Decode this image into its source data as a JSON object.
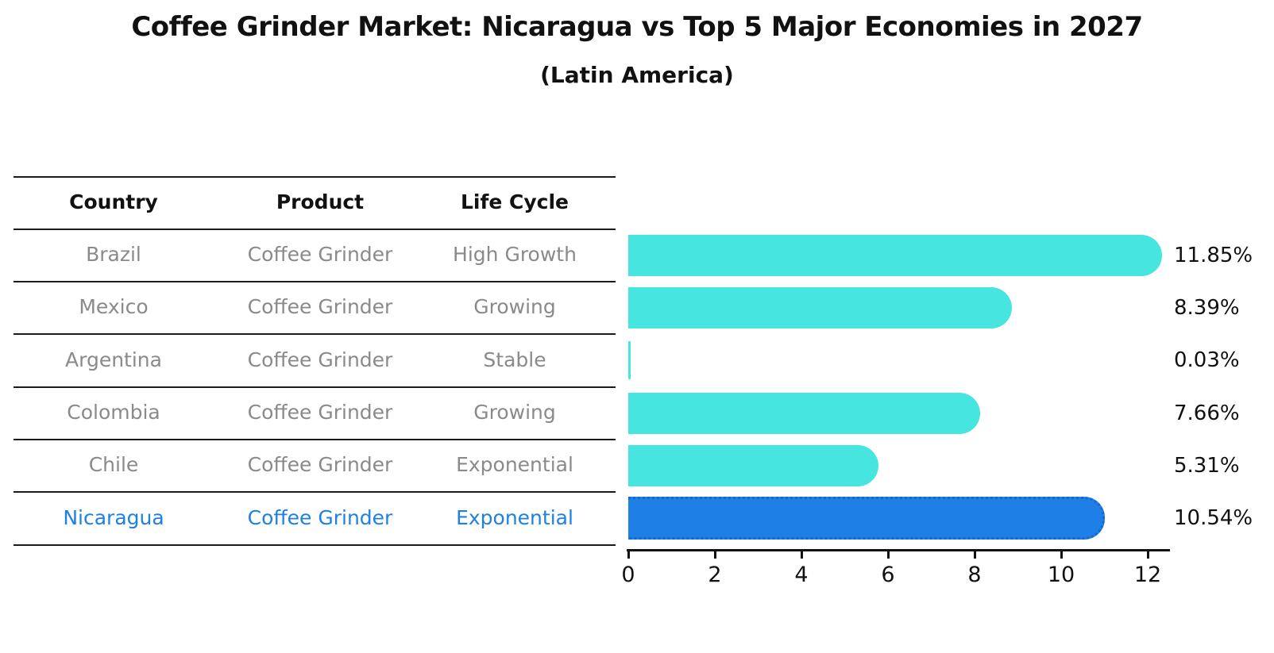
{
  "title": "Coffee Grinder Market: Nicaragua vs Top 5 Major Economies in 2027",
  "subtitle": "(Latin America)",
  "table": {
    "headers": [
      "Country",
      "Product",
      "Life Cycle"
    ],
    "rows": [
      {
        "country": "Brazil",
        "product": "Coffee Grinder",
        "life_cycle": "High Growth"
      },
      {
        "country": "Mexico",
        "product": "Coffee Grinder",
        "life_cycle": "Growing"
      },
      {
        "country": "Argentina",
        "product": "Coffee Grinder",
        "life_cycle": "Stable"
      },
      {
        "country": "Colombia",
        "product": "Coffee Grinder",
        "life_cycle": "Growing"
      },
      {
        "country": "Chile",
        "product": "Coffee Grinder",
        "life_cycle": "Exponential"
      },
      {
        "country": "Nicaragua",
        "product": "Coffee Grinder",
        "life_cycle": "Exponential"
      }
    ]
  },
  "chart_data": {
    "type": "bar",
    "orientation": "horizontal",
    "title": "Coffee Grinder Market: Nicaragua vs Top 5 Major Economies in 2027",
    "subtitle": "(Latin America)",
    "categories": [
      "Brazil",
      "Mexico",
      "Argentina",
      "Colombia",
      "Chile",
      "Nicaragua"
    ],
    "values": [
      11.85,
      8.39,
      0.03,
      7.66,
      5.31,
      10.54
    ],
    "value_labels": [
      "11.85%",
      "8.39%",
      "0.03%",
      "7.66%",
      "5.31%",
      "10.54%"
    ],
    "highlight_index": 5,
    "x_ticks": [
      0,
      2,
      4,
      6,
      8,
      10,
      12
    ],
    "xlim": [
      0,
      12.5
    ],
    "grid": false,
    "legend": "none",
    "colors": {
      "bar_default": "#46E5E0",
      "bar_highlight": "#1E80E6",
      "bar_highlight_border": "#1468D2",
      "text_muted": "#8a8a8a",
      "text_highlight": "#1E80E6",
      "axis": "#111111"
    }
  }
}
